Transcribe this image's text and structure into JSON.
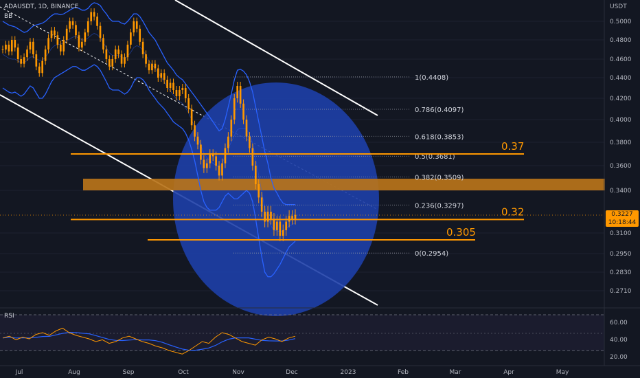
{
  "header": {
    "symbol_line": "ADAUSDT, 1D, BINANCE",
    "indicator": "BB",
    "currency": "USDT"
  },
  "rsi": {
    "label": "RSI",
    "ticks": [
      "60.00",
      "40.00",
      "20.00"
    ],
    "values": [
      44,
      46,
      42,
      45,
      43,
      48,
      50,
      47,
      52,
      55,
      50,
      47,
      45,
      43,
      40,
      42,
      38,
      40,
      44,
      46,
      43,
      40,
      38,
      35,
      33,
      30,
      28,
      26,
      30,
      35,
      40,
      38,
      45,
      50,
      48,
      44,
      40,
      38,
      36,
      42,
      45,
      43,
      40,
      44,
      46
    ]
  },
  "price_badge": {
    "price": "0.3227",
    "countdown": "10:18:44"
  },
  "fib_levels": [
    {
      "label": "1(0.4408)",
      "value": 0.4408
    },
    {
      "label": "0.786(0.4097)",
      "value": 0.4097
    },
    {
      "label": "0.618(0.3853)",
      "value": 0.3853
    },
    {
      "label": "0.5(0.3681)",
      "value": 0.3681
    },
    {
      "label": "0.382(0.3509)",
      "value": 0.3509
    },
    {
      "label": "0.236(0.3297)",
      "value": 0.3297
    },
    {
      "label": "0(0.2954)",
      "value": 0.2954
    }
  ],
  "annotations": [
    {
      "label": "0.37",
      "value": 0.37
    },
    {
      "label": "0.32",
      "value": 0.3195
    },
    {
      "label": "0.305",
      "value": 0.305
    }
  ],
  "colors": {
    "background": "#131722",
    "candle": "#ff9800",
    "bands": "#2962ff",
    "circle": "#1e3fa8",
    "zone": "#b8741a",
    "rsi_line": "#ff9800",
    "rsi_ma": "#2962ff"
  },
  "chart_data": {
    "type": "line",
    "y_axis_ticks": [
      "0.5000",
      "0.4800",
      "0.4600",
      "0.4400",
      "0.4200",
      "0.4000",
      "0.3800",
      "0.3600",
      "0.3400",
      "0.3100",
      "0.2950",
      "0.2830",
      "0.2710"
    ],
    "x_axis_ticks": [
      "Jul",
      "Aug",
      "Sep",
      "Oct",
      "Nov",
      "Dec",
      "2023",
      "Feb",
      "Mar",
      "Apr",
      "May"
    ],
    "close": [
      0.47,
      0.475,
      0.468,
      0.48,
      0.472,
      0.46,
      0.455,
      0.462,
      0.47,
      0.478,
      0.465,
      0.452,
      0.445,
      0.458,
      0.47,
      0.482,
      0.49,
      0.485,
      0.475,
      0.468,
      0.48,
      0.492,
      0.5,
      0.496,
      0.485,
      0.472,
      0.478,
      0.488,
      0.5,
      0.51,
      0.505,
      0.495,
      0.482,
      0.47,
      0.46,
      0.452,
      0.46,
      0.47,
      0.465,
      0.455,
      0.462,
      0.475,
      0.488,
      0.5,
      0.492,
      0.478,
      0.465,
      0.455,
      0.448,
      0.455,
      0.45,
      0.44,
      0.445,
      0.438,
      0.43,
      0.435,
      0.428,
      0.422,
      0.428,
      0.43,
      0.42,
      0.41,
      0.395,
      0.385,
      0.378,
      0.365,
      0.358,
      0.362,
      0.37,
      0.368,
      0.36,
      0.352,
      0.362,
      0.375,
      0.385,
      0.4,
      0.42,
      0.432,
      0.415,
      0.4,
      0.385,
      0.375,
      0.36,
      0.345,
      0.335,
      0.325,
      0.318,
      0.325,
      0.32,
      0.312,
      0.318,
      0.308,
      0.312,
      0.318,
      0.322,
      0.32,
      0.3227
    ],
    "bb_upper": [
      0.5,
      0.498,
      0.496,
      0.495,
      0.494,
      0.492,
      0.49,
      0.488,
      0.489,
      0.492,
      0.495,
      0.496,
      0.497,
      0.498,
      0.5,
      0.503,
      0.506,
      0.508,
      0.508,
      0.507,
      0.508,
      0.51,
      0.512,
      0.514,
      0.515,
      0.514,
      0.512,
      0.512,
      0.514,
      0.518,
      0.52,
      0.519,
      0.517,
      0.512,
      0.508,
      0.503,
      0.5,
      0.5,
      0.5,
      0.498,
      0.497,
      0.5,
      0.504,
      0.508,
      0.508,
      0.505,
      0.5,
      0.494,
      0.488,
      0.484,
      0.48,
      0.474,
      0.468,
      0.462,
      0.456,
      0.452,
      0.448,
      0.443,
      0.44,
      0.438,
      0.434,
      0.43,
      0.426,
      0.422,
      0.418,
      0.414,
      0.41,
      0.406,
      0.402,
      0.398,
      0.394,
      0.39,
      0.392,
      0.4,
      0.412,
      0.424,
      0.438,
      0.448,
      0.449,
      0.447,
      0.443,
      0.436,
      0.426,
      0.412,
      0.398,
      0.385,
      0.372,
      0.362,
      0.35,
      0.342,
      0.338,
      0.334,
      0.331,
      0.33,
      0.33,
      0.33,
      0.33
    ],
    "bb_lower": [
      0.43,
      0.428,
      0.426,
      0.425,
      0.426,
      0.424,
      0.422,
      0.424,
      0.428,
      0.432,
      0.43,
      0.425,
      0.42,
      0.42,
      0.424,
      0.43,
      0.436,
      0.44,
      0.442,
      0.444,
      0.446,
      0.448,
      0.45,
      0.452,
      0.452,
      0.45,
      0.448,
      0.448,
      0.45,
      0.452,
      0.454,
      0.452,
      0.448,
      0.442,
      0.436,
      0.43,
      0.428,
      0.428,
      0.428,
      0.426,
      0.424,
      0.426,
      0.43,
      0.436,
      0.44,
      0.44,
      0.438,
      0.434,
      0.428,
      0.424,
      0.42,
      0.416,
      0.413,
      0.41,
      0.406,
      0.402,
      0.398,
      0.396,
      0.394,
      0.392,
      0.388,
      0.382,
      0.374,
      0.364,
      0.352,
      0.34,
      0.332,
      0.328,
      0.326,
      0.326,
      0.326,
      0.328,
      0.332,
      0.336,
      0.338,
      0.336,
      0.334,
      0.334,
      0.336,
      0.338,
      0.34,
      0.338,
      0.332,
      0.32,
      0.306,
      0.293,
      0.283,
      0.28,
      0.28,
      0.282,
      0.285,
      0.288,
      0.292,
      0.296,
      0.3,
      0.302,
      0.304
    ]
  }
}
